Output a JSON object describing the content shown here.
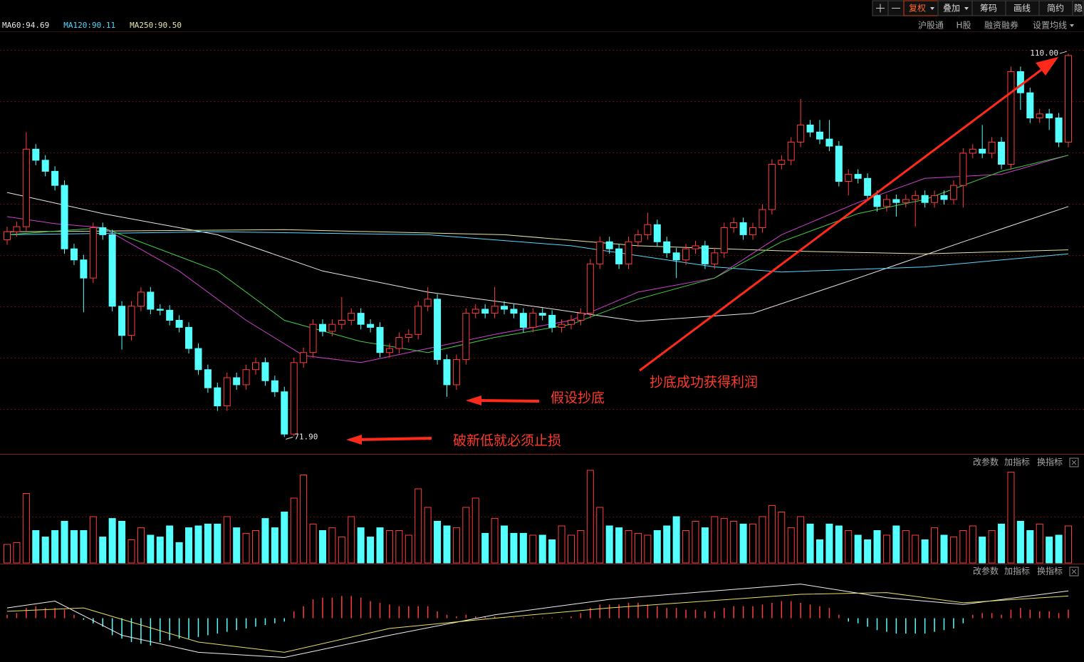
{
  "toolbar": {
    "buttons": [
      "复权",
      "叠加",
      "筹码",
      "画线",
      "简约",
      "隐"
    ]
  },
  "info_bar": {
    "links": [
      "沪股通",
      "H股",
      "融资融券",
      "设置均线"
    ]
  },
  "volume_panel": {
    "buttons": [
      "改参数",
      "加指标",
      "换指标"
    ]
  },
  "macd_panel": {
    "buttons": [
      "改参数",
      "加指标",
      "换指标"
    ]
  },
  "chart_data": [
    {
      "type": "candlestick",
      "up_color": "#ff3c3c",
      "down_color": "#54ffff",
      "xlim": [
        0,
        111
      ],
      "ylim": [
        70.3,
        112.2
      ],
      "open": [
        91.5,
        92.3,
        92.8,
        100.5,
        99.4,
        98.3,
        96.9,
        90.6,
        89.5,
        87.7,
        92.7,
        92.0,
        84.9,
        82.0,
        84.9,
        86.3,
        84.6,
        84.5,
        83.5,
        82.8,
        80.7,
        78.6,
        76.8,
        75.0,
        77.8,
        77.1,
        78.6,
        79.3,
        77.5,
        76.4,
        72.2,
        79.3,
        80.3,
        83.1,
        82.4,
        83.1,
        83.5,
        84.2,
        83.1,
        82.8,
        80.3,
        80.7,
        81.8,
        82.1,
        84.9,
        85.6,
        79.6,
        77.1,
        79.6,
        84.2,
        84.6,
        84.2,
        84.9,
        84.6,
        84.2,
        82.8,
        84.2,
        84.0,
        82.8,
        83.1,
        83.5,
        84.2,
        89.1,
        91.3,
        90.6,
        89.1,
        91.3,
        92.0,
        93.0,
        91.3,
        90.2,
        89.5,
        90.6,
        90.9,
        89.1,
        90.2,
        92.7,
        93.2,
        92.0,
        92.7,
        94.5,
        99.0,
        99.4,
        101.2,
        102.9,
        102.2,
        101.5,
        100.8,
        97.3,
        98.0,
        97.6,
        95.9,
        94.8,
        95.5,
        95.2,
        95.5,
        95.9,
        95.2,
        95.9,
        95.5,
        96.9,
        100.1,
        100.5,
        100.1,
        101.2,
        99.0,
        108.2,
        106.1,
        103.6,
        104.0,
        103.6,
        101.2
      ],
      "high": [
        92.8,
        93.3,
        102.2,
        101.0,
        99.9,
        98.8,
        97.4,
        91.1,
        90.0,
        93.2,
        93.2,
        92.5,
        85.4,
        85.4,
        86.8,
        86.8,
        85.1,
        85.0,
        84.0,
        83.3,
        81.2,
        79.1,
        77.3,
        78.3,
        78.3,
        79.1,
        79.8,
        79.8,
        78.0,
        76.9,
        79.8,
        80.8,
        83.6,
        83.6,
        83.6,
        85.8,
        84.7,
        84.7,
        83.6,
        83.3,
        81.2,
        82.3,
        82.6,
        85.4,
        86.8,
        86.1,
        80.1,
        80.1,
        84.7,
        85.1,
        85.1,
        86.8,
        85.4,
        85.1,
        84.7,
        84.7,
        84.7,
        84.5,
        83.6,
        84.0,
        84.7,
        89.6,
        91.8,
        91.8,
        91.1,
        91.8,
        92.5,
        94.2,
        93.5,
        91.8,
        90.7,
        91.1,
        91.4,
        91.4,
        90.7,
        93.2,
        93.7,
        93.7,
        93.2,
        95.0,
        99.5,
        99.9,
        101.7,
        105.5,
        103.4,
        103.4,
        103.4,
        101.3,
        98.5,
        98.5,
        98.1,
        96.4,
        96.0,
        96.0,
        96.0,
        96.4,
        96.4,
        96.4,
        96.4,
        97.4,
        100.6,
        101.0,
        102.9,
        101.7,
        101.7,
        108.7,
        108.7,
        106.6,
        104.5,
        104.5,
        104.1,
        110.0
      ],
      "low": [
        91.0,
        91.8,
        92.3,
        98.9,
        97.8,
        96.4,
        90.1,
        89.0,
        84.3,
        87.2,
        91.5,
        84.4,
        80.6,
        81.5,
        84.4,
        84.1,
        84.0,
        83.0,
        82.3,
        80.2,
        78.1,
        76.3,
        74.5,
        74.5,
        76.6,
        76.6,
        78.1,
        77.0,
        75.9,
        71.9,
        72.0,
        78.8,
        79.8,
        81.9,
        81.9,
        82.6,
        83.0,
        82.6,
        82.3,
        79.8,
        79.8,
        80.2,
        81.3,
        81.6,
        84.4,
        79.1,
        75.9,
        76.6,
        79.1,
        83.7,
        83.7,
        83.7,
        84.1,
        83.7,
        82.3,
        82.3,
        83.5,
        82.3,
        82.3,
        82.6,
        83.0,
        83.7,
        88.6,
        90.1,
        88.6,
        88.6,
        90.8,
        91.5,
        90.8,
        89.7,
        87.7,
        89.0,
        90.1,
        88.6,
        88.6,
        89.7,
        92.2,
        91.5,
        91.5,
        92.2,
        94.0,
        98.5,
        98.9,
        100.7,
        101.7,
        101.0,
        100.3,
        96.8,
        95.9,
        97.1,
        95.4,
        94.3,
        94.3,
        93.8,
        94.7,
        92.8,
        94.7,
        94.7,
        95.0,
        95.0,
        94.7,
        99.6,
        99.6,
        99.6,
        98.5,
        98.5,
        104.4,
        103.1,
        103.1,
        102.4,
        100.7,
        100.7
      ],
      "close": [
        92.3,
        92.8,
        100.5,
        99.4,
        98.3,
        96.9,
        90.6,
        89.5,
        87.7,
        92.7,
        92.0,
        84.9,
        82.0,
        84.9,
        86.3,
        84.6,
        84.5,
        83.5,
        82.8,
        80.7,
        78.6,
        76.8,
        75.0,
        77.8,
        77.1,
        78.6,
        79.3,
        77.5,
        76.4,
        72.2,
        79.3,
        80.3,
        83.1,
        82.4,
        83.1,
        83.5,
        84.2,
        83.1,
        82.8,
        80.3,
        80.7,
        81.8,
        82.1,
        84.9,
        85.6,
        79.6,
        77.1,
        79.6,
        84.2,
        84.6,
        84.2,
        84.9,
        84.6,
        84.2,
        82.8,
        84.2,
        84.0,
        82.8,
        83.1,
        83.5,
        84.2,
        89.1,
        91.3,
        90.6,
        89.1,
        91.3,
        92.0,
        93.0,
        91.3,
        90.2,
        89.5,
        90.6,
        90.9,
        89.1,
        90.2,
        92.7,
        93.2,
        92.0,
        92.7,
        94.5,
        99.0,
        99.4,
        101.2,
        102.9,
        102.2,
        101.5,
        100.8,
        97.3,
        98.0,
        97.6,
        95.9,
        94.8,
        95.5,
        95.2,
        95.5,
        95.9,
        95.2,
        95.9,
        95.5,
        96.9,
        100.1,
        100.5,
        100.1,
        101.2,
        99.0,
        108.2,
        106.1,
        103.6,
        104.0,
        103.6,
        101.2,
        109.8
      ],
      "series": [
        {
          "name": "MA60:94.69",
          "color": "#e8e8e8",
          "x": [
            0,
            10,
            22,
            33,
            44,
            55,
            66,
            78,
            89,
            100,
            111
          ],
          "values": [
            96.2,
            94.1,
            92.0,
            88.4,
            86.3,
            84.9,
            83.4,
            84.2,
            87.7,
            91.3,
            94.8
          ]
        },
        {
          "name": "MA120:90.11",
          "color": "#54d8ff",
          "x": [
            0,
            22,
            44,
            59,
            74,
            81,
            96,
            111
          ],
          "values": [
            92.0,
            92.3,
            92.0,
            90.9,
            88.8,
            88.3,
            88.8,
            90.1
          ]
        },
        {
          "name": "MA250:90.50",
          "color": "#e6e6a8",
          "x": [
            0,
            29,
            52,
            66,
            81,
            96,
            111
          ],
          "values": [
            92.3,
            92.5,
            92.0,
            90.9,
            90.4,
            90.1,
            90.5
          ]
        },
        {
          "color": "#d040d0",
          "x": [
            0,
            5,
            10,
            18,
            25,
            31,
            37,
            44,
            51,
            59,
            66,
            74,
            81,
            89,
            96,
            104,
            111
          ],
          "values": [
            93.8,
            93.1,
            92.7,
            88.4,
            83.5,
            80.0,
            79.3,
            80.7,
            82.1,
            83.5,
            86.3,
            87.7,
            92.0,
            95.2,
            97.6,
            98.0,
            99.9
          ]
        },
        {
          "color": "#40d040",
          "x": [
            0,
            10,
            22,
            29,
            37,
            44,
            51,
            59,
            66,
            74,
            81,
            89,
            96,
            104,
            111
          ],
          "values": [
            92.0,
            92.7,
            88.4,
            83.5,
            81.4,
            80.3,
            81.8,
            83.1,
            85.6,
            87.7,
            91.3,
            94.1,
            95.5,
            98.3,
            99.9
          ]
        }
      ],
      "extremes": {
        "high": {
          "value": 110,
          "label": "110.00"
        },
        "low": {
          "value": 71.9,
          "label": "71.90"
        }
      },
      "annotations": [
        "抄底成功获得利润",
        "假设抄底",
        "破新低就必须止损"
      ]
    },
    {
      "type": "volume",
      "ylim": [
        0,
        100
      ],
      "values": [
        20,
        22,
        75,
        35,
        28,
        35,
        45,
        35,
        35,
        50,
        28,
        48,
        45,
        25,
        38,
        30,
        28,
        40,
        22,
        38,
        40,
        42,
        42,
        50,
        38,
        32,
        35,
        48,
        38,
        55,
        70,
        95,
        42,
        35,
        38,
        28,
        50,
        38,
        28,
        38,
        35,
        35,
        30,
        80,
        60,
        45,
        40,
        38,
        60,
        70,
        32,
        48,
        40,
        32,
        32,
        30,
        30,
        25,
        40,
        30,
        35,
        100,
        60,
        40,
        38,
        35,
        32,
        30,
        35,
        40,
        50,
        35,
        45,
        38,
        50,
        48,
        45,
        42,
        42,
        50,
        62,
        55,
        38,
        50,
        42,
        25,
        42,
        40,
        35,
        30,
        25,
        35,
        30,
        40,
        35,
        30,
        25,
        38,
        30,
        28,
        35,
        40,
        28,
        35,
        42,
        98,
        45,
        35,
        42,
        28,
        30,
        40
      ]
    },
    {
      "type": "macd",
      "ylim": [
        -1.2,
        1.2
      ],
      "values": [
        0.1,
        0.15,
        0.3,
        0.35,
        0.3,
        0.3,
        0.25,
        0.1,
        -0.05,
        -0.15,
        -0.25,
        -0.5,
        -0.6,
        -0.7,
        -0.75,
        -0.8,
        -0.7,
        -0.65,
        -0.6,
        -0.6,
        -0.55,
        -0.5,
        -0.45,
        -0.4,
        -0.35,
        -0.3,
        -0.25,
        -0.2,
        -0.15,
        -0.1,
        0.2,
        0.35,
        0.55,
        0.6,
        0.6,
        0.65,
        0.65,
        0.6,
        0.5,
        0.45,
        0.4,
        0.35,
        0.35,
        0.35,
        0.35,
        0.2,
        0.1,
        0.05,
        0.1,
        0.05,
        0.05,
        0.05,
        0.02,
        0.02,
        0.02,
        0.02,
        0.02,
        0.02,
        0.02,
        0.05,
        0.15,
        0.3,
        0.4,
        0.4,
        0.4,
        0.45,
        0.45,
        0.4,
        0.35,
        0.3,
        0.3,
        0.25,
        0.25,
        0.2,
        0.2,
        0.3,
        0.35,
        0.35,
        0.35,
        0.4,
        0.45,
        0.5,
        0.5,
        0.45,
        0.4,
        0.35,
        0.3,
        0.1,
        -0.1,
        -0.15,
        -0.25,
        -0.35,
        -0.4,
        -0.45,
        -0.45,
        -0.45,
        -0.45,
        -0.4,
        -0.35,
        -0.3,
        -0.15,
        0.1,
        0.15,
        0.15,
        0.1,
        0.25,
        0.3,
        0.25,
        0.2,
        0.2,
        0.15,
        0.25
      ],
      "series": [
        {
          "color": "#f0f0f0",
          "x": [
            0,
            5,
            12,
            20,
            29,
            40,
            51,
            63,
            83,
            92,
            100,
            111
          ],
          "values": [
            0.3,
            0.5,
            -0.5,
            -1.0,
            -1.15,
            -0.5,
            0.1,
            0.55,
            1.0,
            0.6,
            0.4,
            0.8
          ]
        },
        {
          "color": "#e8e060",
          "x": [
            0,
            8,
            20,
            29,
            40,
            51,
            63,
            83,
            92,
            100,
            111
          ],
          "values": [
            0.2,
            0.3,
            -0.7,
            -1.0,
            -0.3,
            0.0,
            0.3,
            0.7,
            0.75,
            0.45,
            0.65
          ]
        }
      ]
    }
  ]
}
